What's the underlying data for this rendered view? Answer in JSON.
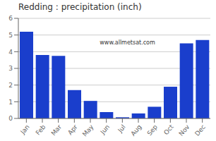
{
  "chart_data": {
    "type": "bar",
    "title": "Redding : precipitation (inch)",
    "categories": [
      "Jan",
      "Feb",
      "Mar",
      "Apr",
      "May",
      "Jun",
      "Jul",
      "Aug",
      "Sep",
      "Oct",
      "Nov",
      "Dec"
    ],
    "values": [
      5.2,
      3.8,
      3.75,
      1.7,
      1.05,
      0.38,
      0.07,
      0.3,
      0.7,
      1.9,
      4.5,
      4.7
    ],
    "color": "#1a3ecc",
    "ylim": [
      0,
      6
    ],
    "yticks": [
      0,
      1,
      2,
      3,
      4,
      5,
      6
    ],
    "grid": true,
    "annotations": [
      "www.allmetsat.com"
    ]
  }
}
